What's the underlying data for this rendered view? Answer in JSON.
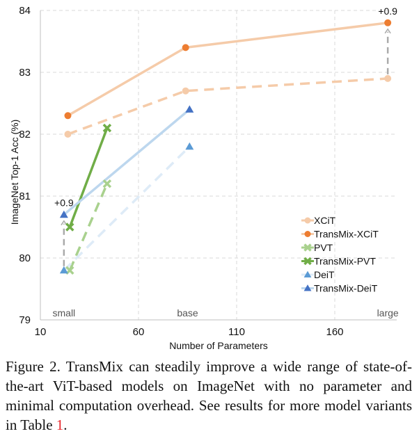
{
  "chart_data": {
    "type": "line",
    "title": "",
    "xlabel": "Number of Parameters",
    "ylabel": "ImageNet Top-1 Acc (%)",
    "xlim": [
      10,
      195
    ],
    "ylim": [
      79,
      84
    ],
    "x_ticks": [
      10,
      60,
      110,
      160
    ],
    "y_ticks": [
      79,
      80,
      81,
      82,
      83,
      84
    ],
    "grid": true,
    "legend_position": "bottom-right",
    "size_labels": [
      {
        "text": "small",
        "x": 22
      },
      {
        "text": "base",
        "x": 85
      },
      {
        "text": "large",
        "x": 187
      }
    ],
    "series": [
      {
        "name": "XCiT",
        "color": "#f5cba9",
        "marker": "circle",
        "dashed": true,
        "x": [
          24,
          84,
          187
        ],
        "y": [
          82.0,
          82.7,
          82.9
        ]
      },
      {
        "name": "TransMix-XCiT",
        "color": "#ed7d31",
        "line_color": "#f5cba9",
        "marker": "circle",
        "dashed": false,
        "x": [
          24,
          84,
          187
        ],
        "y": [
          82.3,
          83.4,
          83.8
        ]
      },
      {
        "name": "PVT",
        "color": "#a9d18e",
        "marker": "x",
        "dashed": true,
        "x": [
          25,
          44
        ],
        "y": [
          79.8,
          81.2
        ]
      },
      {
        "name": "TransMix-PVT",
        "color": "#70ad47",
        "line_color": "#70ad47",
        "marker": "x",
        "dashed": false,
        "x": [
          25,
          44
        ],
        "y": [
          80.5,
          82.1
        ]
      },
      {
        "name": "DeiT",
        "color": "#5b9bd5",
        "line_color": "#deebf7",
        "marker": "triangle",
        "dashed": true,
        "x": [
          22,
          86
        ],
        "y": [
          79.8,
          81.8
        ]
      },
      {
        "name": "TransMix-DeiT",
        "color": "#4472c4",
        "line_color": "#bdd7ee",
        "marker": "triangle",
        "dashed": false,
        "x": [
          22,
          86
        ],
        "y": [
          80.7,
          82.4
        ]
      }
    ],
    "annotations": [
      {
        "text": "+0.9",
        "x": 22,
        "from_y": 79.8,
        "to_y": 80.7
      },
      {
        "text": "+0.9",
        "x": 187,
        "from_y": 82.9,
        "to_y": 83.8
      }
    ]
  },
  "caption": {
    "text": "Figure 2. TransMix can steadily improve a wide range of state-of-the-art ViT-based models on ImageNet with no parameter and minimal computation overhead. See results for more model variants in Table ",
    "ref": "1",
    "end": "."
  }
}
